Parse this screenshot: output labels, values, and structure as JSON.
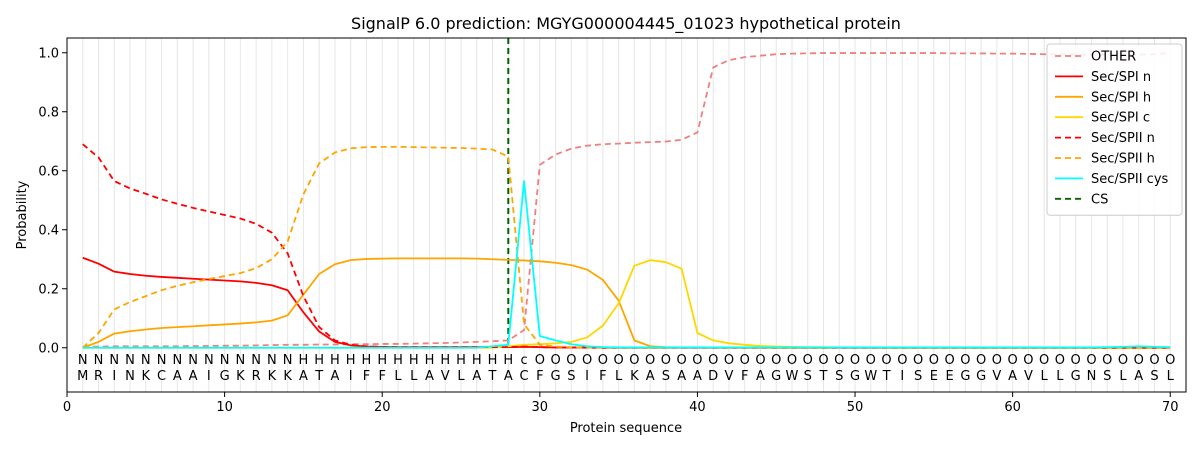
{
  "chart_data": {
    "type": "line",
    "title": "SignalP 6.0 prediction: MGYG000004445_01023 hypothetical protein",
    "xlabel": "Protein sequence",
    "ylabel": "Probability",
    "xlim": [
      0,
      71
    ],
    "ylim": [
      -0.15,
      1.05
    ],
    "xticks": [
      0,
      10,
      20,
      30,
      40,
      50,
      60,
      70
    ],
    "yticks": [
      0.0,
      0.2,
      0.4,
      0.6,
      0.8,
      1.0
    ],
    "legend_position": "top-right",
    "sequence": [
      "M",
      "R",
      "I",
      "N",
      "K",
      "C",
      "A",
      "A",
      "I",
      "G",
      "K",
      "R",
      "K",
      "K",
      "A",
      "T",
      "A",
      "I",
      "F",
      "F",
      "L",
      "L",
      "A",
      "V",
      "L",
      "A",
      "T",
      "A",
      "C",
      "F",
      "G",
      "S",
      "I",
      "F",
      "L",
      "K",
      "A",
      "S",
      "A",
      "A",
      "D",
      "V",
      "F",
      "A",
      "G",
      "W",
      "S",
      "T",
      "S",
      "G",
      "W",
      "T",
      "I",
      "S",
      "E",
      "E",
      "G",
      "G",
      "V",
      "A",
      "V",
      "L",
      "L",
      "G",
      "N",
      "S",
      "L",
      "A",
      "S",
      "L"
    ],
    "region_labels": [
      "N",
      "N",
      "N",
      "N",
      "N",
      "N",
      "N",
      "N",
      "N",
      "N",
      "N",
      "N",
      "N",
      "N",
      "H",
      "H",
      "H",
      "H",
      "H",
      "H",
      "H",
      "H",
      "H",
      "H",
      "H",
      "H",
      "H",
      "H",
      "c",
      "O",
      "O",
      "O",
      "O",
      "O",
      "O",
      "O",
      "O",
      "O",
      "O",
      "O",
      "O",
      "O",
      "O",
      "O",
      "O",
      "O",
      "O",
      "O",
      "O",
      "O",
      "O",
      "O",
      "O",
      "O",
      "O",
      "O",
      "O",
      "O",
      "O",
      "O",
      "O",
      "O",
      "O",
      "O",
      "O",
      "O",
      "O",
      "O",
      "O",
      "O"
    ],
    "region_colors": {
      "N": "#ff0000",
      "H": "#ffa500",
      "c": "#00ffff",
      "O": "#808080"
    },
    "cs_position": 28,
    "series": [
      {
        "name": "OTHER",
        "color": "#f08080",
        "dash": true,
        "values": [
          0.003,
          0.004,
          0.005,
          0.005,
          0.005,
          0.005,
          0.005,
          0.006,
          0.006,
          0.007,
          0.007,
          0.008,
          0.009,
          0.01,
          0.01,
          0.011,
          0.011,
          0.012,
          0.012,
          0.013,
          0.013,
          0.014,
          0.015,
          0.016,
          0.018,
          0.02,
          0.022,
          0.025,
          0.06,
          0.62,
          0.655,
          0.675,
          0.685,
          0.69,
          0.692,
          0.695,
          0.697,
          0.699,
          0.705,
          0.73,
          0.95,
          0.975,
          0.985,
          0.99,
          0.995,
          0.997,
          0.998,
          0.999,
          0.999,
          0.999,
          0.999,
          0.999,
          0.999,
          0.999,
          0.999,
          0.998,
          0.998,
          0.998,
          0.997,
          0.997,
          0.996,
          0.995,
          0.995,
          0.994,
          0.994,
          0.993,
          0.993,
          0.993,
          0.995,
          1.0
        ]
      },
      {
        "name": "Sec/SPI n",
        "color": "#ff0000",
        "dash": false,
        "values": [
          0.305,
          0.285,
          0.258,
          0.25,
          0.244,
          0.24,
          0.237,
          0.234,
          0.231,
          0.228,
          0.225,
          0.22,
          0.212,
          0.195,
          0.12,
          0.055,
          0.02,
          0.008,
          0.004,
          0.003,
          0.002,
          0.002,
          0.002,
          0.002,
          0.002,
          0.002,
          0.002,
          0.002,
          0.003,
          0.002,
          0.001,
          0.001,
          0.001,
          0.0,
          0.0,
          0.0,
          0.0,
          0.0,
          0.0,
          0.0,
          0.0,
          0.0,
          0.0,
          0.0,
          0.0,
          0.0,
          0.0,
          0.0,
          0.0,
          0.0,
          0.0,
          0.0,
          0.0,
          0.0,
          0.0,
          0.0,
          0.0,
          0.0,
          0.0,
          0.0,
          0.0,
          0.0,
          0.0,
          0.0,
          0.0,
          0.0,
          0.0,
          0.0,
          0.0,
          0.0
        ]
      },
      {
        "name": "Sec/SPI h",
        "color": "#ffa500",
        "dash": false,
        "values": [
          0.0,
          0.02,
          0.048,
          0.056,
          0.062,
          0.067,
          0.07,
          0.073,
          0.076,
          0.079,
          0.082,
          0.086,
          0.092,
          0.11,
          0.18,
          0.25,
          0.283,
          0.297,
          0.301,
          0.302,
          0.303,
          0.303,
          0.303,
          0.303,
          0.303,
          0.302,
          0.3,
          0.298,
          0.296,
          0.293,
          0.288,
          0.28,
          0.265,
          0.23,
          0.16,
          0.025,
          0.005,
          0.002,
          0.001,
          0.001,
          0.001,
          0.0,
          0.0,
          0.0,
          0.0,
          0.0,
          0.0,
          0.0,
          0.0,
          0.0,
          0.0,
          0.0,
          0.0,
          0.0,
          0.0,
          0.0,
          0.0,
          0.0,
          0.0,
          0.0,
          0.0,
          0.0,
          0.0,
          0.0,
          0.0,
          0.0,
          0.0,
          0.0,
          0.0,
          0.0
        ]
      },
      {
        "name": "Sec/SPI c",
        "color": "#ffd700",
        "dash": false,
        "values": [
          0.0,
          0.0,
          0.0,
          0.0,
          0.0,
          0.0,
          0.0,
          0.0,
          0.0,
          0.0,
          0.0,
          0.0,
          0.0,
          0.0,
          0.0,
          0.0,
          0.0,
          0.0,
          0.0,
          0.0,
          0.0,
          0.0,
          0.0,
          0.0,
          0.0,
          0.0,
          0.0,
          0.005,
          0.01,
          0.012,
          0.015,
          0.02,
          0.035,
          0.075,
          0.15,
          0.278,
          0.297,
          0.29,
          0.268,
          0.05,
          0.025,
          0.015,
          0.01,
          0.006,
          0.004,
          0.003,
          0.002,
          0.002,
          0.001,
          0.001,
          0.001,
          0.0,
          0.0,
          0.0,
          0.0,
          0.0,
          0.0,
          0.0,
          0.0,
          0.0,
          0.0,
          0.0,
          0.0,
          0.0,
          0.0,
          0.0,
          0.0,
          0.0,
          0.0,
          0.0
        ]
      },
      {
        "name": "Sec/SPII n",
        "color": "#ff0000",
        "dash": true,
        "values": [
          0.69,
          0.645,
          0.565,
          0.54,
          0.522,
          0.503,
          0.488,
          0.474,
          0.462,
          0.45,
          0.438,
          0.42,
          0.39,
          0.32,
          0.175,
          0.07,
          0.025,
          0.01,
          0.005,
          0.003,
          0.002,
          0.002,
          0.002,
          0.002,
          0.002,
          0.002,
          0.002,
          0.002,
          0.004,
          0.002,
          0.001,
          0.001,
          0.0,
          0.0,
          0.0,
          0.0,
          0.0,
          0.0,
          0.0,
          0.0,
          0.0,
          0.0,
          0.0,
          0.0,
          0.0,
          0.0,
          0.0,
          0.0,
          0.0,
          0.0,
          0.0,
          0.0,
          0.0,
          0.0,
          0.0,
          0.0,
          0.0,
          0.0,
          0.0,
          0.0,
          0.0,
          0.0,
          0.0,
          0.0,
          0.0,
          0.0,
          0.0,
          0.0,
          0.0,
          0.0
        ]
      },
      {
        "name": "Sec/SPII h",
        "color": "#ffa500",
        "dash": true,
        "values": [
          0.0,
          0.05,
          0.13,
          0.155,
          0.175,
          0.195,
          0.21,
          0.222,
          0.233,
          0.243,
          0.253,
          0.27,
          0.3,
          0.36,
          0.52,
          0.625,
          0.662,
          0.676,
          0.68,
          0.681,
          0.681,
          0.68,
          0.679,
          0.678,
          0.677,
          0.675,
          0.672,
          0.648,
          0.08,
          0.01,
          0.004,
          0.002,
          0.001,
          0.0,
          0.0,
          0.0,
          0.0,
          0.0,
          0.0,
          0.0,
          0.0,
          0.0,
          0.0,
          0.0,
          0.0,
          0.0,
          0.0,
          0.0,
          0.0,
          0.0,
          0.0,
          0.0,
          0.0,
          0.0,
          0.0,
          0.0,
          0.0,
          0.0,
          0.0,
          0.0,
          0.0,
          0.0,
          0.0,
          0.0,
          0.0,
          0.0,
          0.0,
          0.0,
          0.0,
          0.0
        ]
      },
      {
        "name": "Sec/SPII cys",
        "color": "#00ffff",
        "dash": false,
        "values": [
          0.0,
          0.0,
          0.0,
          0.0,
          0.0,
          0.0,
          0.0,
          0.0,
          0.0,
          0.0,
          0.0,
          0.0,
          0.0,
          0.0,
          0.0,
          0.0,
          0.0,
          0.0,
          0.0,
          0.0,
          0.0,
          0.0,
          0.0,
          0.0,
          0.0,
          0.0,
          0.005,
          0.01,
          0.565,
          0.04,
          0.025,
          0.012,
          0.005,
          0.002,
          0.001,
          0.001,
          0.001,
          0.001,
          0.001,
          0.001,
          0.001,
          0.001,
          0.001,
          0.001,
          0.001,
          0.001,
          0.001,
          0.001,
          0.001,
          0.001,
          0.001,
          0.001,
          0.001,
          0.001,
          0.001,
          0.001,
          0.001,
          0.001,
          0.001,
          0.001,
          0.001,
          0.001,
          0.001,
          0.001,
          0.001,
          0.002,
          0.003,
          0.005,
          0.003,
          0.002
        ]
      }
    ],
    "legend": [
      "OTHER",
      "Sec/SPI n",
      "Sec/SPI h",
      "Sec/SPI c",
      "Sec/SPII n",
      "Sec/SPII h",
      "Sec/SPII cys",
      "CS"
    ],
    "cs_label": "CS",
    "cs_color": "#006400"
  }
}
